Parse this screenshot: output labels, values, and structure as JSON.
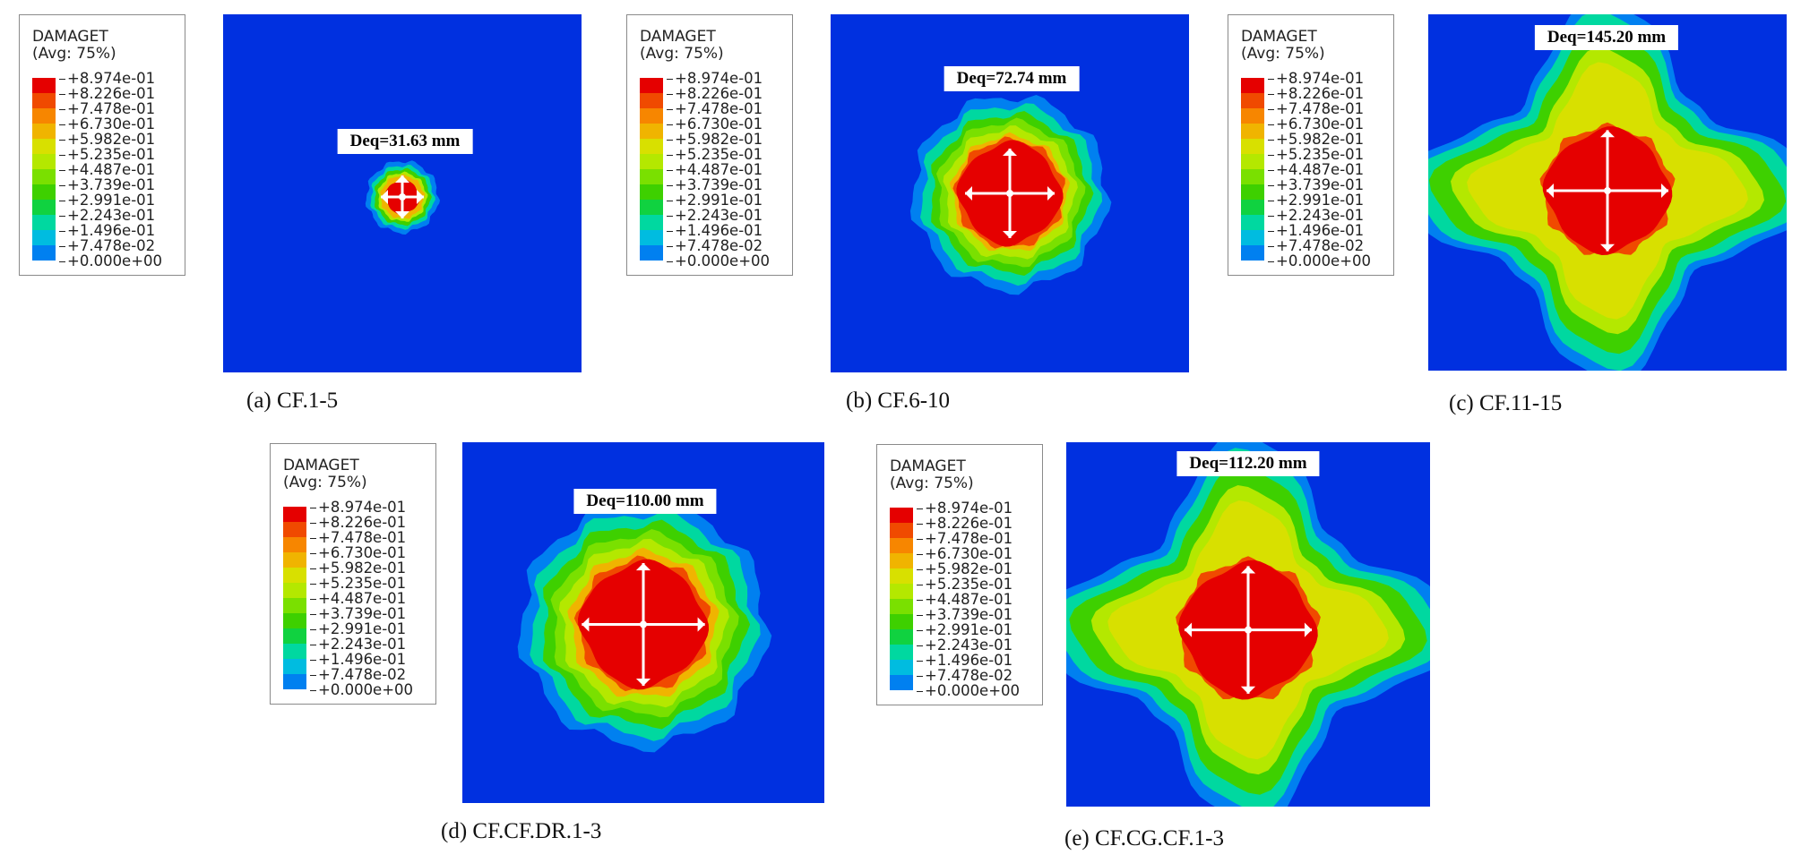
{
  "legend": {
    "title": "DAMAGET",
    "subtitle": "(Avg: 75%)",
    "labels": [
      "+8.974e-01",
      "+8.226e-01",
      "+7.478e-01",
      "+6.730e-01",
      "+5.982e-01",
      "+5.235e-01",
      "+4.487e-01",
      "+3.739e-01",
      "+2.991e-01",
      "+2.243e-01",
      "+1.496e-01",
      "+7.478e-02",
      "+0.000e+00"
    ],
    "colors": [
      "#e50000",
      "#f04a00",
      "#f78600",
      "#f0b400",
      "#d8e000",
      "#b4e800",
      "#7ae000",
      "#3ed000",
      "#10d240",
      "#00d8a0",
      "#00bce0",
      "#0080f0",
      "#0030e0"
    ]
  },
  "panels": [
    {
      "caption": "(a) CF.1-5",
      "deq": "Deq=31.63 mm"
    },
    {
      "caption": "(b) CF.6-10",
      "deq": "Deq=72.74 mm"
    },
    {
      "caption": "(c) CF.11-15",
      "deq": "Deq=145.20 mm"
    },
    {
      "caption": "(d) CF.CF.DR.1-3",
      "deq": "Deq=110.00 mm"
    },
    {
      "caption": "(e) CF.CG.CF.1-3",
      "deq": "Deq=112.20 mm"
    }
  ]
}
